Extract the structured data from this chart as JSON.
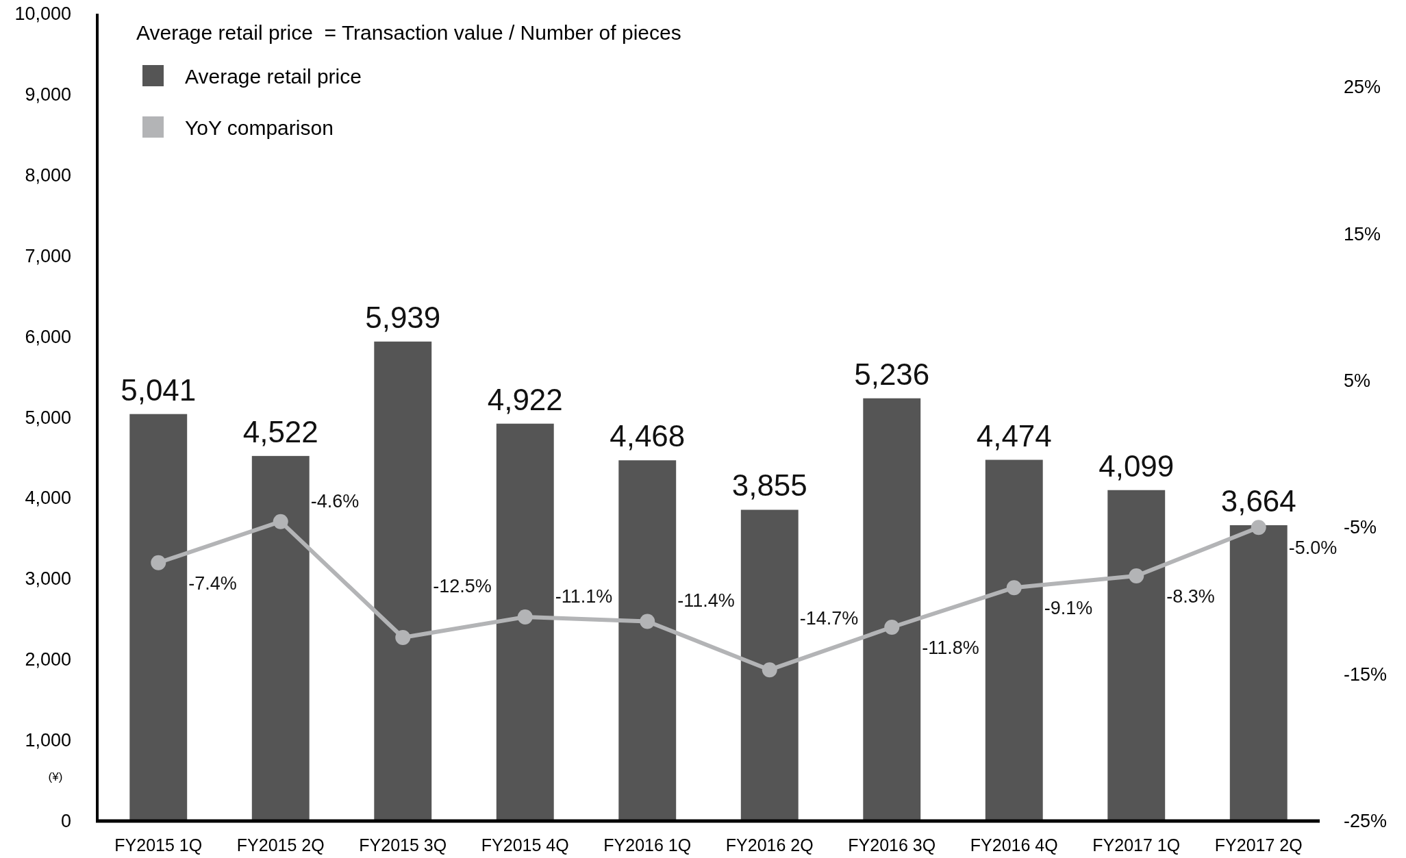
{
  "chart_data": {
    "type": "bar",
    "title": "Average retail price  = Transaction value / Number of pieces",
    "ylabel": "(¥)",
    "categories": [
      "FY2015 1Q",
      "FY2015 2Q",
      "FY2015 3Q",
      "FY2015 4Q",
      "FY2016 1Q",
      "FY2016 2Q",
      "FY2016 3Q",
      "FY2016 4Q",
      "FY2017 1Q",
      "FY2017 2Q"
    ],
    "series": [
      {
        "name": "Average retail price",
        "color": "#555555",
        "values": [
          5041,
          4522,
          5939,
          4922,
          4468,
          3855,
          5236,
          4474,
          4099,
          3664
        ],
        "value_labels": [
          "5,041",
          "4,522",
          "5,939",
          "4,922",
          "4,468",
          "3,855",
          "5,236",
          "4,474",
          "4,099",
          "3,664"
        ]
      },
      {
        "name": "YoY comparison",
        "type": "line",
        "axis": "y2",
        "color": "#b3b4b6",
        "values": [
          -7.4,
          -4.6,
          -12.5,
          -11.1,
          -11.4,
          -14.7,
          -11.8,
          -9.1,
          -8.3,
          -5.0
        ],
        "value_labels": [
          "-7.4%",
          "-4.6%",
          "-12.5%",
          "-11.1%",
          "-11.4%",
          "-14.7%",
          "-11.8%",
          "-9.1%",
          "-8.3%",
          "-5.0%"
        ]
      }
    ],
    "ylim": [
      0,
      10000
    ],
    "yticks": [
      0,
      {
        "value": 1000,
        "label": "1,000"
      },
      {
        "value": 2000,
        "label": "2,000"
      },
      {
        "value": 3000,
        "label": "3,000"
      },
      {
        "value": 4000,
        "label": "4,000"
      },
      {
        "value": 5000,
        "label": "5,000"
      },
      {
        "value": 6000,
        "label": "6,000"
      },
      {
        "value": 7000,
        "label": "7,000"
      },
      {
        "value": 8000,
        "label": "8,000"
      },
      {
        "value": 9000,
        "label": "9,000"
      },
      {
        "value": 10000,
        "label": "10,000"
      }
    ],
    "y2lim": [
      -25,
      30
    ],
    "y2ticks": [
      {
        "value": -25,
        "label": "-25%"
      },
      {
        "value": -15,
        "label": "-15%"
      },
      {
        "value": -5,
        "label": "-5%"
      },
      {
        "value": 5,
        "label": "5%"
      },
      {
        "value": 15,
        "label": "15%"
      },
      {
        "value": 25,
        "label": "25%"
      }
    ],
    "legend": "top left",
    "marker": "circle",
    "line_style": "solid"
  }
}
